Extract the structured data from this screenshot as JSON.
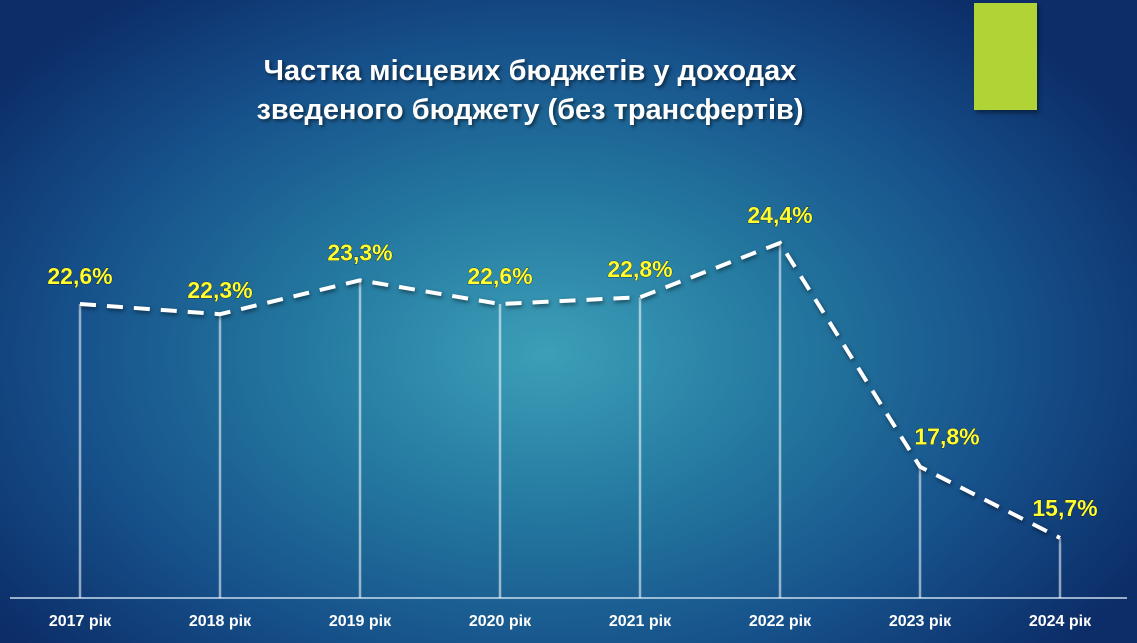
{
  "chart_data": {
    "type": "line",
    "title": "Частка місцевих бюджетів у доходах зведеного бюджету (без трансфертів)",
    "title_lines": [
      "Частка місцевих бюджетів у доходах",
      "зведеного бюджету (без трансфертів)"
    ],
    "categories": [
      "2017 рік",
      "2018 рік",
      "2019 рік",
      "2020 рік",
      "2021 рік",
      "2022 рік",
      "2023 рік",
      "2024 рік"
    ],
    "values": [
      22.6,
      22.3,
      23.3,
      22.6,
      22.8,
      24.4,
      17.8,
      15.7
    ],
    "data_labels": [
      "22,6%",
      "22,3%",
      "23,3%",
      "22,6%",
      "22,8%",
      "24,4%",
      "17,8%",
      "15,7%"
    ],
    "unit": "%",
    "line_style": "dashed",
    "drop_lines": true,
    "grid": false,
    "xlabel": "",
    "ylabel": "",
    "colors": {
      "line": "#ffffff",
      "labels": "#ffff33",
      "accent": "#b0d335",
      "axis": "#c8dcec"
    }
  }
}
